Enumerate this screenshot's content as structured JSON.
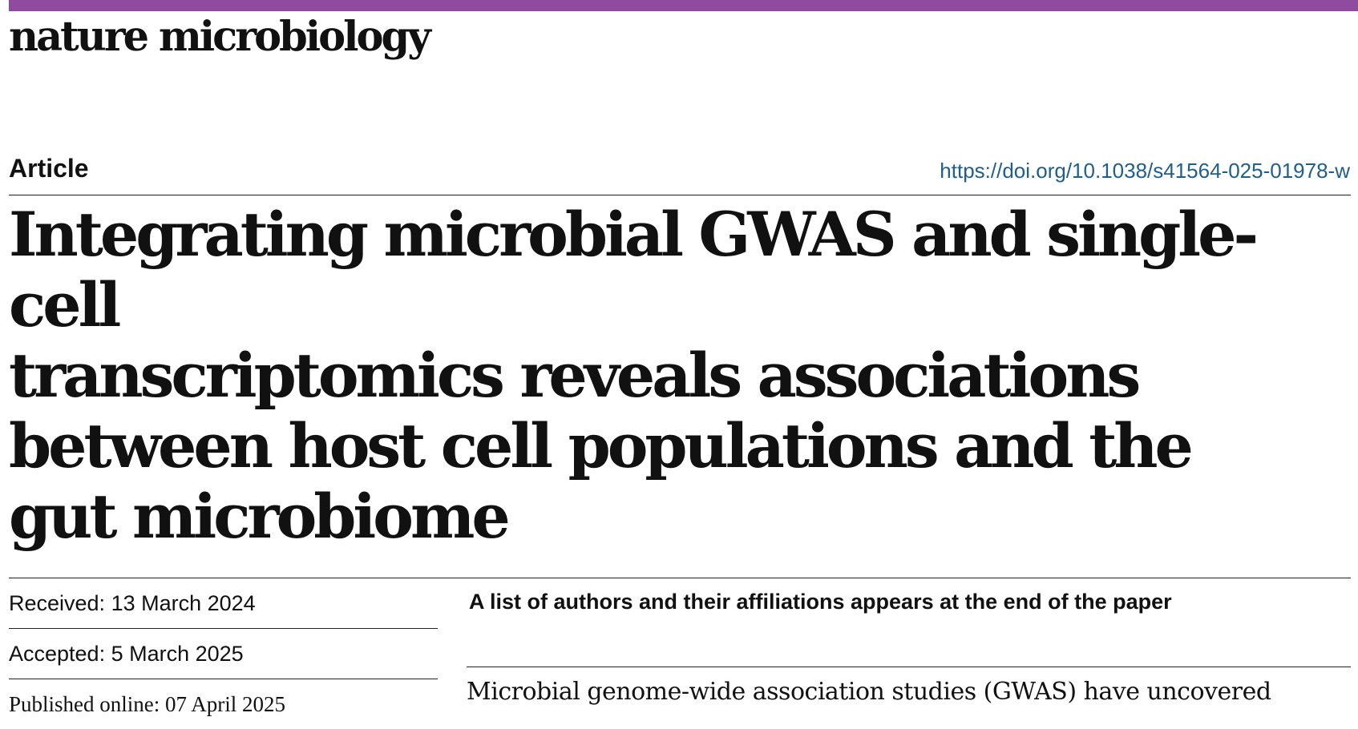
{
  "journal": {
    "name": "nature microbiology",
    "brand_color": "#8e4b9f"
  },
  "header": {
    "article_type": "Article",
    "doi": "https://doi.org/10.1038/s41564-025-01978-w",
    "doi_color": "#1f5f8b"
  },
  "title": {
    "lines": [
      "Integrating microbial GWAS and single-cell",
      "transcriptomics reveals associations",
      "between host cell populations and the",
      "gut microbiome"
    ]
  },
  "meta": {
    "received": "Received: 13 March 2024",
    "accepted": "Accepted: 5 March 2025",
    "published": "Published online: 07 April 2025"
  },
  "authors_note": "A list of authors and their affiliations appears at the end of the paper",
  "abstract": {
    "first_line": "Microbial genome-wide association studies (GWAS) have uncovered"
  }
}
